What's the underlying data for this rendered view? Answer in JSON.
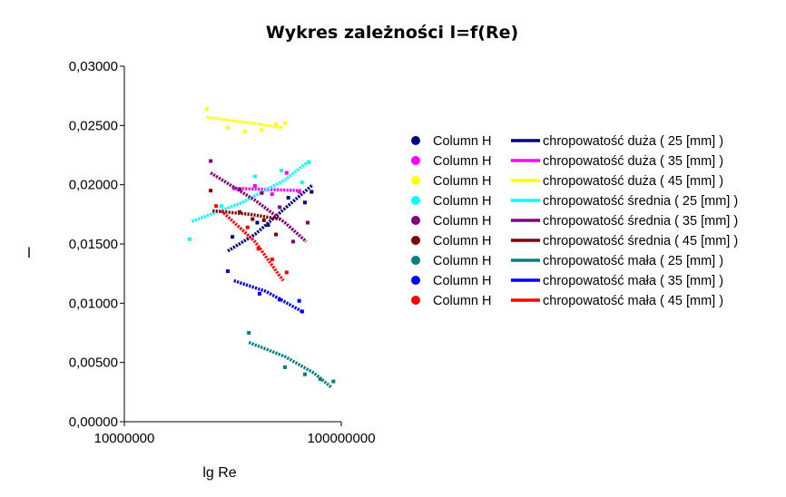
{
  "chart_data": {
    "type": "scatter",
    "title": "Wykres zależności l=f(Re)",
    "xlabel": "lg Re",
    "ylabel": "l",
    "x_scale": "log",
    "xlim": [
      10000000,
      100000000
    ],
    "ylim": [
      0,
      0.03
    ],
    "y_ticks": [
      "0,00000",
      "0,00500",
      "0,01000",
      "0,01500",
      "0,02000",
      "0,02500",
      "0,03000"
    ],
    "x_ticks": [
      "10000000",
      "100000000"
    ],
    "grid": false,
    "legend_position": "right",
    "series": [
      {
        "marker_label": "Column H",
        "name": "chropowatość duża ( 25 [mm] )",
        "color": "#000080",
        "points": [
          [
            31500000,
            0.0156
          ],
          [
            41000000,
            0.0168
          ],
          [
            46000000,
            0.0166
          ],
          [
            57000000,
            0.0189
          ],
          [
            68000000,
            0.0185
          ],
          [
            73000000,
            0.0194
          ]
        ],
        "trend": [
          [
            30000000,
            0.0144
          ],
          [
            40000000,
            0.0158
          ],
          [
            55000000,
            0.018
          ],
          [
            74000000,
            0.02
          ]
        ]
      },
      {
        "marker_label": "Column H",
        "name": "chropowatość duża ( 35 [mm] )",
        "color": "#ff00ff",
        "points": [
          [
            32000000,
            0.0197
          ],
          [
            40000000,
            0.0199
          ],
          [
            48000000,
            0.0192
          ],
          [
            56000000,
            0.021
          ],
          [
            64000000,
            0.0194
          ]
        ],
        "trend": [
          [
            31500000,
            0.0197
          ],
          [
            45000000,
            0.0196
          ],
          [
            66000000,
            0.0195
          ]
        ]
      },
      {
        "marker_label": "Column H",
        "name": "chropowatość duża ( 45 [mm] )",
        "color": "#ffff00",
        "points": [
          [
            24000000,
            0.0264
          ],
          [
            30000000,
            0.0248
          ],
          [
            36000000,
            0.0245
          ],
          [
            43000000,
            0.0246
          ],
          [
            50000000,
            0.0251
          ],
          [
            55000000,
            0.0252
          ]
        ],
        "trend": [
          [
            24000000,
            0.0257
          ],
          [
            38000000,
            0.0252
          ],
          [
            54000000,
            0.0248
          ]
        ]
      },
      {
        "marker_label": "Column H",
        "name": "chropowatość średnia ( 25 [mm] )",
        "color": "#00ffff",
        "points": [
          [
            20000000,
            0.0154
          ],
          [
            28000000,
            0.0182
          ],
          [
            40000000,
            0.0207
          ],
          [
            53000000,
            0.0212
          ],
          [
            66000000,
            0.0202
          ],
          [
            71000000,
            0.0219
          ]
        ],
        "trend": [
          [
            20500000,
            0.0169
          ],
          [
            35000000,
            0.0185
          ],
          [
            55000000,
            0.0204
          ],
          [
            71000000,
            0.022
          ]
        ]
      },
      {
        "marker_label": "Column H",
        "name": "chropowatość średnia ( 35 [mm] )",
        "color": "#800080",
        "points": [
          [
            25000000,
            0.022
          ],
          [
            34000000,
            0.0196
          ],
          [
            43000000,
            0.0193
          ],
          [
            52000000,
            0.0181
          ],
          [
            60000000,
            0.0152
          ],
          [
            70000000,
            0.0168
          ]
        ],
        "trend": [
          [
            25000000,
            0.021
          ],
          [
            40000000,
            0.0187
          ],
          [
            55000000,
            0.0168
          ],
          [
            69000000,
            0.0152
          ]
        ]
      },
      {
        "marker_label": "Column H",
        "name": "chropowatość średnia ( 45 [mm] )",
        "color": "#800000",
        "points": [
          [
            25000000,
            0.0195
          ],
          [
            34000000,
            0.0177
          ],
          [
            39000000,
            0.0171
          ],
          [
            44000000,
            0.017
          ],
          [
            50000000,
            0.0158
          ]
        ],
        "trend": [
          [
            25500000,
            0.0178
          ],
          [
            38000000,
            0.0175
          ],
          [
            52000000,
            0.0171
          ]
        ]
      },
      {
        "marker_label": "Column H",
        "name": "chropowatość mała ( 25 [mm] )",
        "color": "#008080",
        "points": [
          [
            37500000,
            0.0075
          ],
          [
            55000000,
            0.0046
          ],
          [
            68000000,
            0.004
          ],
          [
            80000000,
            0.0036
          ],
          [
            92000000,
            0.0034
          ]
        ],
        "trend": [
          [
            37500000,
            0.0067
          ],
          [
            55000000,
            0.0055
          ],
          [
            75000000,
            0.0041
          ],
          [
            90000000,
            0.0029
          ]
        ]
      },
      {
        "marker_label": "Column H",
        "name": "chropowatość mała ( 35 [mm] )",
        "color": "#0000ff",
        "points": [
          [
            30000000,
            0.0127
          ],
          [
            42000000,
            0.0108
          ],
          [
            52000000,
            0.0103
          ],
          [
            64000000,
            0.0102
          ],
          [
            66000000,
            0.0093
          ]
        ],
        "trend": [
          [
            32000000,
            0.0119
          ],
          [
            45000000,
            0.011
          ],
          [
            66000000,
            0.0093
          ]
        ]
      },
      {
        "marker_label": "Column H",
        "name": "chropowatość mała ( 45 [mm] )",
        "color": "#ff0000",
        "points": [
          [
            26500000,
            0.0182
          ],
          [
            37000000,
            0.0164
          ],
          [
            41500000,
            0.0146
          ],
          [
            48000000,
            0.0137
          ],
          [
            56000000,
            0.0126
          ]
        ],
        "trend": [
          [
            28000000,
            0.0178
          ],
          [
            40000000,
            0.0152
          ],
          [
            54000000,
            0.0119
          ]
        ]
      }
    ]
  }
}
